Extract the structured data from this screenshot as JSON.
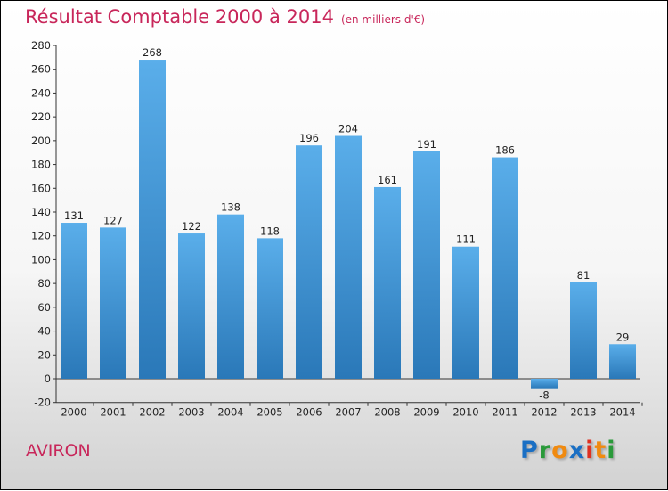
{
  "title": "Résultat Comptable 2000 à 2014",
  "unit": "(en milliers d'€)",
  "commune": "AVIRON",
  "logo": {
    "text": "Proxiti",
    "letters": [
      "P",
      "r",
      "o",
      "x",
      "i",
      "t",
      "i"
    ],
    "colors": [
      "#1a6fc4",
      "#2a9a3a",
      "#f08a10",
      "#1a6fc4",
      "#e03020",
      "#f08a10",
      "#2a9a3a"
    ]
  },
  "chart_data": {
    "type": "bar",
    "title": "Résultat Comptable 2000 à 2014",
    "ylabel": "(en milliers d'€)",
    "xlabel": "",
    "categories": [
      "2000",
      "2001",
      "2002",
      "2003",
      "2004",
      "2005",
      "2006",
      "2007",
      "2008",
      "2009",
      "2010",
      "2011",
      "2012",
      "2013",
      "2014"
    ],
    "values": [
      131,
      127,
      268,
      122,
      138,
      118,
      196,
      204,
      161,
      191,
      111,
      186,
      -8,
      81,
      29
    ],
    "ylim": [
      -20,
      280
    ],
    "yticks": [
      -20,
      0,
      20,
      40,
      60,
      80,
      100,
      120,
      140,
      160,
      180,
      200,
      220,
      240,
      260,
      280
    ],
    "grid": false,
    "bar_color": "#4a9fe0"
  }
}
